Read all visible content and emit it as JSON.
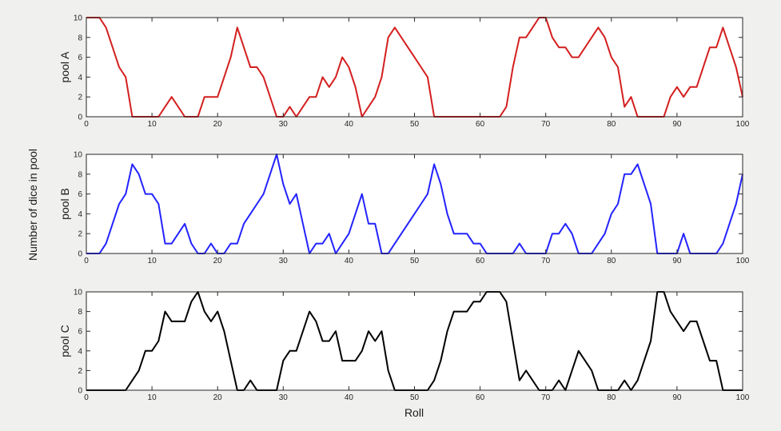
{
  "chart_data": [
    {
      "type": "line",
      "ylabel": "pool A",
      "color": "#d41f1f",
      "xlim": [
        0,
        100
      ],
      "ylim": [
        0,
        10
      ],
      "xticks": [
        0,
        10,
        20,
        30,
        40,
        50,
        60,
        70,
        80,
        90,
        100
      ],
      "yticks": [
        0,
        2,
        4,
        6,
        8,
        10
      ],
      "x_start": 0,
      "values": [
        10,
        10,
        10,
        9,
        7,
        5,
        4,
        0,
        0,
        0,
        0,
        0,
        1,
        2,
        1,
        0,
        0,
        0,
        2,
        2,
        2,
        4,
        6,
        9,
        7,
        5,
        5,
        4,
        2,
        0,
        0,
        1,
        0,
        1,
        2,
        2,
        4,
        3,
        4,
        6,
        5,
        3,
        0,
        1,
        2,
        4,
        8,
        9,
        8,
        7,
        6,
        5,
        4,
        0,
        0,
        0,
        0,
        0,
        0,
        0,
        0,
        0,
        0,
        0,
        1,
        5,
        8,
        8,
        9,
        10,
        10,
        8,
        7,
        7,
        6,
        6,
        7,
        8,
        9,
        8,
        6,
        5,
        1,
        2,
        0,
        0,
        0,
        0,
        0,
        2,
        3,
        2,
        3,
        3,
        5,
        7,
        7,
        9,
        7,
        5,
        2
      ]
    },
    {
      "type": "line",
      "ylabel": "pool B",
      "color": "#2323ff",
      "xlim": [
        0,
        100
      ],
      "ylim": [
        0,
        10
      ],
      "xticks": [
        0,
        10,
        20,
        30,
        40,
        50,
        60,
        70,
        80,
        90,
        100
      ],
      "yticks": [
        0,
        2,
        4,
        6,
        8,
        10
      ],
      "x_start": 0,
      "values": [
        0,
        0,
        0,
        1,
        3,
        5,
        6,
        9,
        8,
        6,
        6,
        5,
        1,
        1,
        2,
        3,
        1,
        0,
        0,
        1,
        0,
        0,
        1,
        1,
        3,
        4,
        5,
        6,
        8,
        10,
        7,
        5,
        6,
        3,
        0,
        1,
        1,
        2,
        0,
        1,
        2,
        4,
        6,
        3,
        3,
        0,
        0,
        1,
        2,
        3,
        4,
        5,
        6,
        9,
        7,
        4,
        2,
        2,
        2,
        1,
        1,
        0,
        0,
        0,
        0,
        0,
        1,
        0,
        0,
        0,
        0,
        2,
        2,
        3,
        2,
        0,
        0,
        0,
        1,
        2,
        4,
        5,
        8,
        8,
        9,
        7,
        5,
        0,
        0,
        0,
        0,
        2,
        0,
        0,
        0,
        0,
        0,
        1,
        3,
        5,
        8
      ]
    },
    {
      "type": "line",
      "ylabel": "pool C",
      "xlabel": "Roll",
      "color": "#000000",
      "xlim": [
        0,
        100
      ],
      "ylim": [
        0,
        10
      ],
      "xticks": [
        0,
        10,
        20,
        30,
        40,
        50,
        60,
        70,
        80,
        90,
        100
      ],
      "yticks": [
        0,
        2,
        4,
        6,
        8,
        10
      ],
      "x_start": 0,
      "values": [
        0,
        0,
        0,
        0,
        0,
        0,
        0,
        1,
        2,
        4,
        4,
        5,
        8,
        7,
        7,
        7,
        9,
        10,
        8,
        7,
        8,
        6,
        3,
        0,
        0,
        1,
        0,
        0,
        0,
        0,
        3,
        4,
        4,
        6,
        8,
        7,
        5,
        5,
        6,
        3,
        3,
        3,
        4,
        6,
        5,
        6,
        2,
        0,
        0,
        0,
        0,
        0,
        0,
        1,
        3,
        6,
        8,
        8,
        8,
        9,
        9,
        10,
        10,
        10,
        9,
        5,
        1,
        2,
        1,
        0,
        0,
        0,
        1,
        0,
        2,
        4,
        3,
        2,
        0,
        0,
        0,
        0,
        1,
        0,
        1,
        3,
        5,
        10,
        10,
        8,
        7,
        6,
        7,
        7,
        5,
        3,
        3,
        0,
        0,
        0,
        0
      ]
    }
  ],
  "figure": {
    "shared_ylabel": "Number of dice in pool",
    "xlabel": "Roll"
  }
}
